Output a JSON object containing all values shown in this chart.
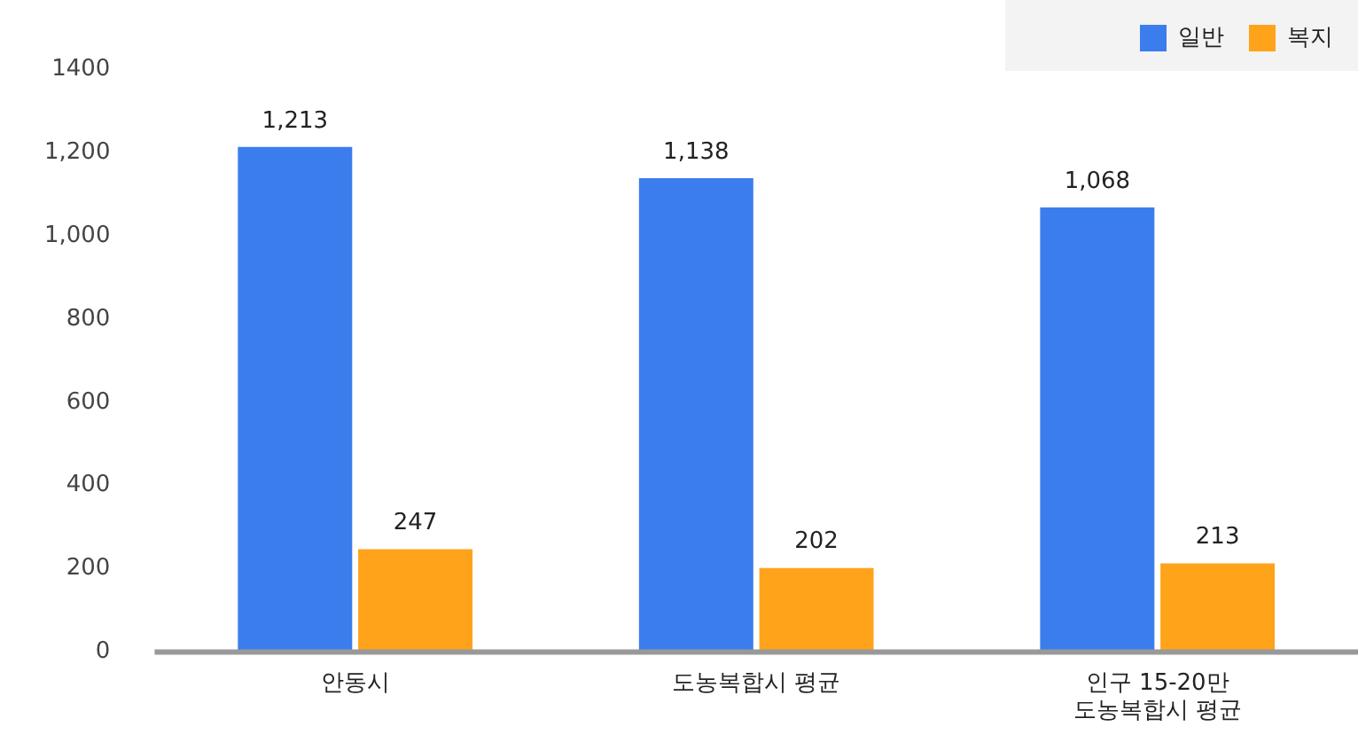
{
  "chart_data": {
    "type": "bar",
    "categories": [
      "안동시",
      "도농복합시 평균",
      "인구 15-20만\n도농복합시 평균"
    ],
    "series": [
      {
        "name": "일반",
        "color": "#3b7ded",
        "values": [
          1213,
          1138,
          1068
        ],
        "value_labels": [
          "1,213",
          "1,138",
          "1,068"
        ]
      },
      {
        "name": "복지",
        "color": "#ffa31a",
        "values": [
          247,
          202,
          213
        ],
        "value_labels": [
          "247",
          "202",
          "213"
        ]
      }
    ],
    "ylim": [
      0,
      1400
    ],
    "yticks": [
      0,
      200,
      400,
      600,
      800,
      {
        "value": 1000,
        "label": "1,000"
      },
      {
        "value": 1200,
        "label": "1,200"
      },
      1400
    ],
    "grid": false,
    "legend": "top right"
  }
}
